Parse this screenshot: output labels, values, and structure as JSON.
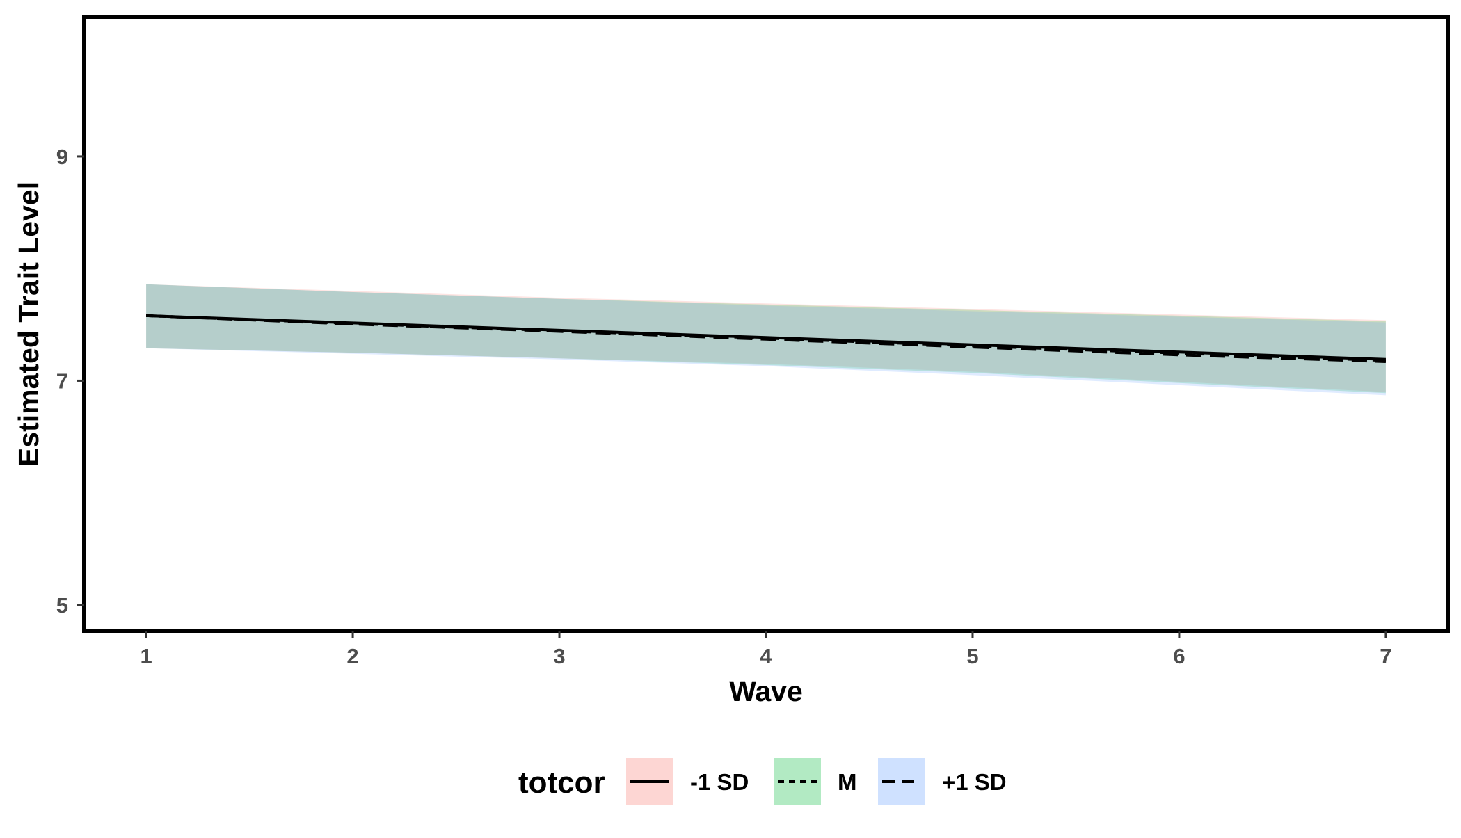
{
  "chart_data": {
    "type": "line",
    "xlabel": "Wave",
    "ylabel": "Estimated Trait Level",
    "x": [
      1,
      2,
      3,
      4,
      5,
      6,
      7
    ],
    "xticks": [
      "1",
      "2",
      "3",
      "4",
      "5",
      "6",
      "7"
    ],
    "yticks": [
      "5",
      "7",
      "9"
    ],
    "xlim": [
      0.7,
      7.3
    ],
    "ylim": [
      4.77,
      10.24
    ],
    "grid": false,
    "series": [
      {
        "name": "-1 SD",
        "linetype": "solid",
        "fill": "#f8766d",
        "y": [
          7.58,
          7.515,
          7.45,
          7.385,
          7.32,
          7.255,
          7.19
        ],
        "lower": [
          7.29,
          7.25,
          7.2,
          7.15,
          7.08,
          6.99,
          6.9
        ],
        "upper": [
          7.86,
          7.8,
          7.74,
          7.69,
          7.64,
          7.59,
          7.54
        ]
      },
      {
        "name": "M",
        "linetype": "dotted",
        "fill": "#00ba38",
        "y": [
          7.58,
          7.51,
          7.445,
          7.38,
          7.31,
          7.245,
          7.18
        ],
        "lower": [
          7.29,
          7.25,
          7.2,
          7.14,
          7.07,
          6.98,
          6.89
        ],
        "upper": [
          7.86,
          7.79,
          7.73,
          7.68,
          7.63,
          7.58,
          7.53
        ]
      },
      {
        "name": "+1 SD",
        "linetype": "dashed",
        "fill": "#619cff",
        "y": [
          7.58,
          7.505,
          7.44,
          7.37,
          7.3,
          7.23,
          7.17
        ],
        "lower": [
          7.29,
          7.24,
          7.19,
          7.13,
          7.05,
          6.96,
          6.87
        ],
        "upper": [
          7.86,
          7.79,
          7.73,
          7.67,
          7.62,
          7.57,
          7.52
        ]
      }
    ],
    "legend": {
      "title": "totcor",
      "position": "bottom"
    }
  }
}
